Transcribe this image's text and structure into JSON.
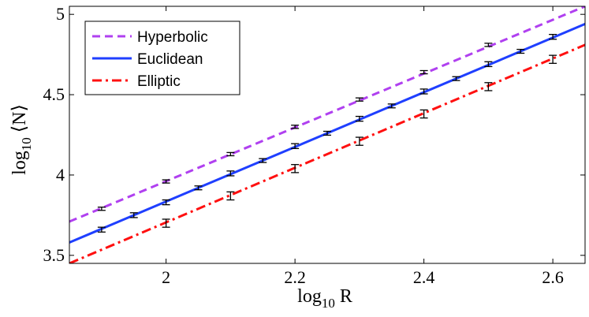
{
  "chart_data": {
    "type": "line",
    "title": "",
    "xlabel": "log10 R",
    "ylabel": "log10 ⟨N⟩",
    "xlim": [
      1.85,
      2.65
    ],
    "ylim": [
      3.45,
      5.05
    ],
    "xticks": [
      2,
      2.2,
      2.4,
      2.6
    ],
    "xtick_labels": [
      "2",
      "2.2",
      "2.4",
      "2.6"
    ],
    "yticks": [
      3.5,
      4,
      4.5,
      5
    ],
    "ytick_labels": [
      "3.5",
      "4",
      "4.5",
      "5"
    ],
    "legend_position": "top-left",
    "series": [
      {
        "name": "Hyperbolic",
        "color": "#b040f0",
        "dash": "dashed",
        "line": [
          [
            1.85,
            3.71
          ],
          [
            2.65,
            5.05
          ]
        ],
        "points": [
          {
            "x": 1.9,
            "y": 3.79,
            "err": 0.01
          },
          {
            "x": 2.0,
            "y": 3.96,
            "err": 0.01
          },
          {
            "x": 2.1,
            "y": 4.13,
            "err": 0.01
          },
          {
            "x": 2.2,
            "y": 4.3,
            "err": 0.01
          },
          {
            "x": 2.3,
            "y": 4.47,
            "err": 0.01
          },
          {
            "x": 2.4,
            "y": 4.64,
            "err": 0.01
          },
          {
            "x": 2.5,
            "y": 4.81,
            "err": 0.01
          }
        ]
      },
      {
        "name": "Euclidean",
        "color": "#1f3fff",
        "dash": "solid",
        "line": [
          [
            1.85,
            3.58
          ],
          [
            2.65,
            4.94
          ]
        ],
        "points": [
          {
            "x": 1.9,
            "y": 3.66,
            "err": 0.015
          },
          {
            "x": 1.95,
            "y": 3.75,
            "err": 0.015
          },
          {
            "x": 2.0,
            "y": 3.83,
            "err": 0.015
          },
          {
            "x": 2.05,
            "y": 3.92,
            "err": 0.012
          },
          {
            "x": 2.1,
            "y": 4.01,
            "err": 0.015
          },
          {
            "x": 2.15,
            "y": 4.09,
            "err": 0.012
          },
          {
            "x": 2.2,
            "y": 4.18,
            "err": 0.015
          },
          {
            "x": 2.25,
            "y": 4.26,
            "err": 0.012
          },
          {
            "x": 2.3,
            "y": 4.35,
            "err": 0.015
          },
          {
            "x": 2.35,
            "y": 4.43,
            "err": 0.012
          },
          {
            "x": 2.4,
            "y": 4.52,
            "err": 0.015
          },
          {
            "x": 2.45,
            "y": 4.6,
            "err": 0.012
          },
          {
            "x": 2.5,
            "y": 4.69,
            "err": 0.015
          },
          {
            "x": 2.55,
            "y": 4.77,
            "err": 0.012
          },
          {
            "x": 2.6,
            "y": 4.86,
            "err": 0.015
          }
        ]
      },
      {
        "name": "Elliptic",
        "color": "#ff1010",
        "dash": "dashdot",
        "line": [
          [
            1.85,
            3.45
          ],
          [
            2.65,
            4.81
          ]
        ],
        "points": [
          {
            "x": 2.0,
            "y": 3.7,
            "err": 0.025
          },
          {
            "x": 2.1,
            "y": 3.87,
            "err": 0.025
          },
          {
            "x": 2.2,
            "y": 4.04,
            "err": 0.025
          },
          {
            "x": 2.3,
            "y": 4.21,
            "err": 0.025
          },
          {
            "x": 2.4,
            "y": 4.38,
            "err": 0.025
          },
          {
            "x": 2.5,
            "y": 4.55,
            "err": 0.025
          },
          {
            "x": 2.6,
            "y": 4.72,
            "err": 0.025
          }
        ]
      }
    ]
  }
}
